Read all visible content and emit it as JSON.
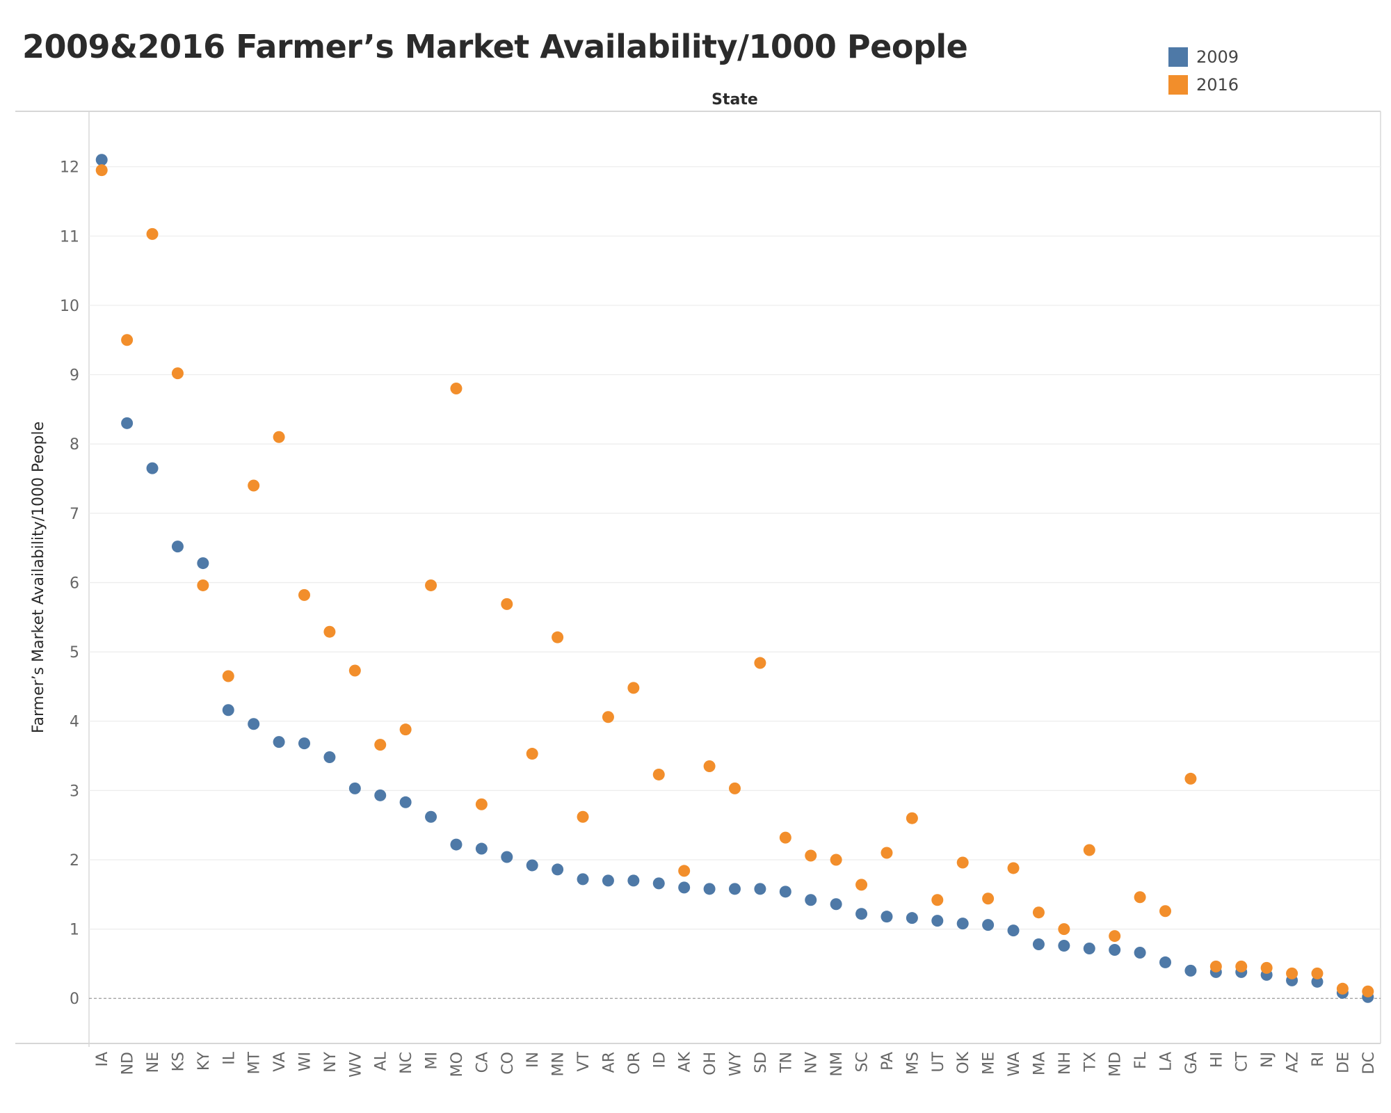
{
  "chart_data": {
    "type": "scatter",
    "title": "2009&2016 Farmer’s Market Availability/1000 People",
    "x_header": "State",
    "ylabel": "Farmer’s Market Availability/1000 People",
    "ylim": [
      -0.65,
      12.8
    ],
    "yticks": [
      0,
      1,
      2,
      3,
      4,
      5,
      6,
      7,
      8,
      9,
      10,
      11,
      12
    ],
    "grid": true,
    "legend_position": "top-right",
    "categories": [
      "IA",
      "ND",
      "NE",
      "KS",
      "KY",
      "IL",
      "MT",
      "VA",
      "WI",
      "NY",
      "WV",
      "AL",
      "NC",
      "MI",
      "MO",
      "CA",
      "CO",
      "IN",
      "MN",
      "VT",
      "AR",
      "OR",
      "ID",
      "AK",
      "OH",
      "WY",
      "SD",
      "TN",
      "NV",
      "NM",
      "SC",
      "PA",
      "MS",
      "UT",
      "OK",
      "ME",
      "WA",
      "MA",
      "NH",
      "TX",
      "MD",
      "FL",
      "LA",
      "GA",
      "HI",
      "CT",
      "NJ",
      "AZ",
      "RI",
      "DE",
      "DC"
    ],
    "series": [
      {
        "name": "2009",
        "color": "#4e79a7",
        "values": [
          12.1,
          8.3,
          7.65,
          6.52,
          6.28,
          4.16,
          3.96,
          3.7,
          3.68,
          3.48,
          3.03,
          2.93,
          2.83,
          2.62,
          2.22,
          2.16,
          2.04,
          1.92,
          1.86,
          1.72,
          1.7,
          1.7,
          1.66,
          1.6,
          1.58,
          1.58,
          1.58,
          1.54,
          1.42,
          1.36,
          1.22,
          1.18,
          1.16,
          1.12,
          1.08,
          1.06,
          0.98,
          0.78,
          0.76,
          0.72,
          0.7,
          0.66,
          0.52,
          0.4,
          0.38,
          0.38,
          0.34,
          0.26,
          0.24,
          0.08,
          0.02
        ]
      },
      {
        "name": "2016",
        "color": "#f28e2b",
        "values": [
          11.95,
          9.5,
          11.03,
          9.02,
          5.96,
          4.65,
          7.4,
          8.1,
          5.82,
          5.29,
          4.73,
          3.66,
          3.88,
          5.96,
          8.8,
          2.8,
          5.69,
          3.53,
          5.21,
          2.62,
          4.06,
          4.48,
          3.23,
          1.84,
          3.35,
          3.03,
          4.84,
          2.32,
          2.06,
          2.0,
          1.64,
          2.1,
          2.6,
          1.42,
          1.96,
          1.44,
          1.88,
          1.24,
          1.0,
          2.14,
          0.9,
          1.46,
          1.26,
          3.17,
          0.46,
          0.46,
          0.44,
          0.36,
          0.36,
          0.14,
          0.1
        ]
      }
    ]
  }
}
